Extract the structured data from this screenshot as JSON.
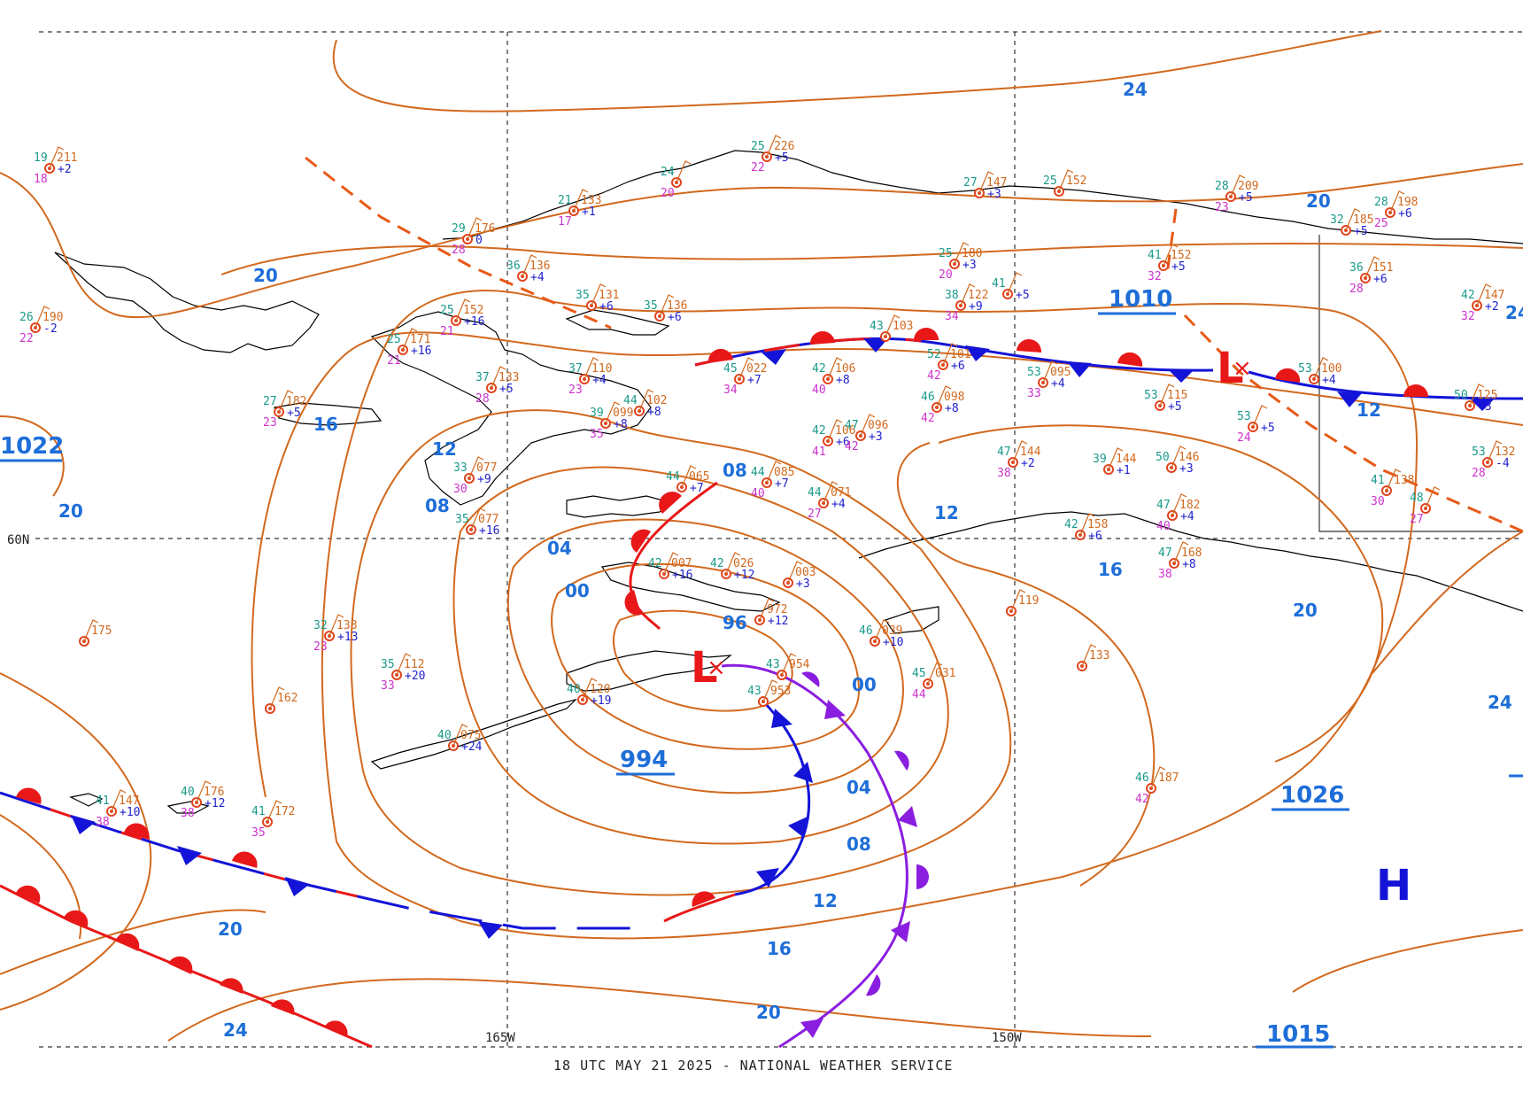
{
  "footer": "18 UTC MAY 21 2025 - NATIONAL WEATHER SERVICE",
  "grid_labels": {
    "lat_60": "60N",
    "lon_165": "165W",
    "lon_150": "150W"
  },
  "isobar_labels": [
    "24",
    "20",
    "20",
    "20",
    "16",
    "12",
    "08",
    "04",
    "00",
    "96",
    "00",
    "04",
    "08",
    "12",
    "16",
    "20",
    "24",
    "20",
    "24",
    "12",
    "12",
    "16",
    "20",
    "24",
    "08"
  ],
  "pressure_centers": {
    "low_main_pressure": "994",
    "low_east_pressure": "1010",
    "high_sw_pressure": "1022",
    "high_se_pressure": "1026",
    "high_s_pressure": "1015"
  },
  "symbols": {
    "low": "L",
    "high": "H",
    "center_mark": "×"
  },
  "colors": {
    "isobar": "#d2691e",
    "label_blue": "#1e6ed8",
    "warm_front": "#e81818",
    "cold_front": "#1414d8",
    "occluded_front": "#8a1ee0",
    "trough": "#e85a18",
    "coastline": "#000000"
  },
  "stations": [
    {
      "t": "19",
      "p": "211",
      "d": "18",
      "x": "+2"
    },
    {
      "t": "26",
      "p": "190",
      "d": "22",
      "x": "-2"
    },
    {
      "t": "25",
      "p": "171",
      "d": "21",
      "x": "+16"
    },
    {
      "t": "27",
      "p": "182",
      "d": "23",
      "x": "+5"
    },
    {
      "t": "29",
      "p": "176",
      "d": "28",
      "x": "0"
    },
    {
      "t": "21",
      "p": "133",
      "d": "17",
      "x": "+1"
    },
    {
      "t": "24",
      "p": "",
      "d": "20",
      "x": ""
    },
    {
      "t": "25",
      "p": "226",
      "d": "22",
      "x": "+5"
    },
    {
      "t": "36",
      "p": "136",
      "d": "",
      "x": "+4"
    },
    {
      "t": "25",
      "p": "152",
      "d": "21",
      "x": "+16"
    },
    {
      "t": "35",
      "p": "131",
      "d": "",
      "x": "+6"
    },
    {
      "t": "35",
      "p": "136",
      "d": "",
      "x": "+6"
    },
    {
      "t": "37",
      "p": "133",
      "d": "28",
      "x": "+5"
    },
    {
      "t": "37",
      "p": "110",
      "d": "23",
      "x": "+4"
    },
    {
      "t": "39",
      "p": "099",
      "d": "35",
      "x": "+8"
    },
    {
      "t": "44",
      "p": "102",
      "d": "",
      "x": "+8"
    },
    {
      "t": "33",
      "p": "077",
      "d": "30",
      "x": "+9"
    },
    {
      "t": "35",
      "p": "077",
      "d": "",
      "x": "+16"
    },
    {
      "t": "44",
      "p": "065",
      "d": "",
      "x": "+7"
    },
    {
      "t": "44",
      "p": "085",
      "d": "40",
      "x": "+7"
    },
    {
      "t": "45",
      "p": "022",
      "d": "34",
      "x": "+7"
    },
    {
      "t": "42",
      "p": "106",
      "d": "40",
      "x": "+8"
    },
    {
      "t": "43",
      "p": "103",
      "d": "",
      "x": ""
    },
    {
      "t": "42",
      "p": "106",
      "d": "41",
      "x": "+6"
    },
    {
      "t": "47",
      "p": "096",
      "d": "42",
      "x": "+3"
    },
    {
      "t": "44",
      "p": "071",
      "d": "27",
      "x": "+4"
    },
    {
      "t": "52",
      "p": "101",
      "d": "42",
      "x": "+6"
    },
    {
      "t": "46",
      "p": "098",
      "d": "42",
      "x": "+8"
    },
    {
      "t": "27",
      "p": "147",
      "d": "",
      "x": "+3"
    },
    {
      "t": "25",
      "p": "152",
      "d": "",
      "x": ""
    },
    {
      "t": "25",
      "p": "180",
      "d": "20",
      "x": "+3"
    },
    {
      "t": "38",
      "p": "122",
      "d": "34",
      "x": "+9"
    },
    {
      "t": "41",
      "p": "",
      "d": "",
      "x": "+5"
    },
    {
      "t": "41",
      "p": "152",
      "d": "32",
      "x": "+5"
    },
    {
      "t": "28",
      "p": "209",
      "d": "23",
      "x": "+5"
    },
    {
      "t": "53",
      "p": "095",
      "d": "33",
      "x": "+4"
    },
    {
      "t": "53",
      "p": "115",
      "d": "",
      "x": "+5"
    },
    {
      "t": "53",
      "p": "100",
      "d": "",
      "x": "+4"
    },
    {
      "t": "47",
      "p": "144",
      "d": "38",
      "x": "+2"
    },
    {
      "t": "39",
      "p": "144",
      "d": "",
      "x": "+1"
    },
    {
      "t": "50",
      "p": "146",
      "d": "",
      "x": "+3"
    },
    {
      "t": "47",
      "p": "182",
      "d": "40",
      "x": "+4"
    },
    {
      "t": "47",
      "p": "168",
      "d": "38",
      "x": "+8"
    },
    {
      "t": "42",
      "p": "158",
      "d": "",
      "x": "+6"
    },
    {
      "t": "42",
      "p": "007",
      "d": "",
      "x": "+16"
    },
    {
      "t": "42",
      "p": "026",
      "d": "",
      "x": "+12"
    },
    {
      "t": "",
      "p": "003",
      "d": "",
      "x": "+3"
    },
    {
      "t": "",
      "p": "972",
      "d": "",
      "x": "+12"
    },
    {
      "t": "46",
      "p": "039",
      "d": "",
      "x": "+10"
    },
    {
      "t": "45",
      "p": "031",
      "d": "44",
      "x": ""
    },
    {
      "t": "43",
      "p": "954",
      "d": "",
      "x": ""
    },
    {
      "t": "43",
      "p": "953",
      "d": "",
      "x": ""
    },
    {
      "t": "32",
      "p": "138",
      "d": "23",
      "x": "+13"
    },
    {
      "t": "35",
      "p": "112",
      "d": "33",
      "x": "+20"
    },
    {
      "t": "40",
      "p": "075",
      "d": "",
      "x": "+24"
    },
    {
      "t": "40",
      "p": "120",
      "d": "",
      "x": "+19"
    },
    {
      "t": "41",
      "p": "147",
      "d": "38",
      "x": "+10"
    },
    {
      "t": "40",
      "p": "176",
      "d": "38",
      "x": "+12"
    },
    {
      "t": "41",
      "p": "172",
      "d": "35",
      "x": ""
    },
    {
      "t": "",
      "p": "175",
      "d": "",
      "x": ""
    },
    {
      "t": "",
      "p": "162",
      "d": "",
      "x": ""
    },
    {
      "t": "",
      "p": "119",
      "d": "",
      "x": ""
    },
    {
      "t": "",
      "p": "133",
      "d": "",
      "x": ""
    },
    {
      "t": "46",
      "p": "187",
      "d": "42",
      "x": ""
    },
    {
      "t": "53",
      "p": "132",
      "d": "28",
      "x": "-4"
    },
    {
      "t": "53",
      "p": "",
      "d": "24",
      "x": "+5"
    },
    {
      "t": "41",
      "p": "138",
      "d": "30",
      "x": ""
    },
    {
      "t": "48",
      "p": "",
      "d": "27",
      "x": ""
    },
    {
      "t": "28",
      "p": "198",
      "d": "25",
      "x": "+6"
    },
    {
      "t": "32",
      "p": "185",
      "d": "",
      "x": "+5"
    },
    {
      "t": "36",
      "p": "151",
      "d": "28",
      "x": "+6"
    },
    {
      "t": "42",
      "p": "147",
      "d": "32",
      "x": "+2"
    },
    {
      "t": "50",
      "p": "125",
      "d": "",
      "x": "-3"
    }
  ]
}
